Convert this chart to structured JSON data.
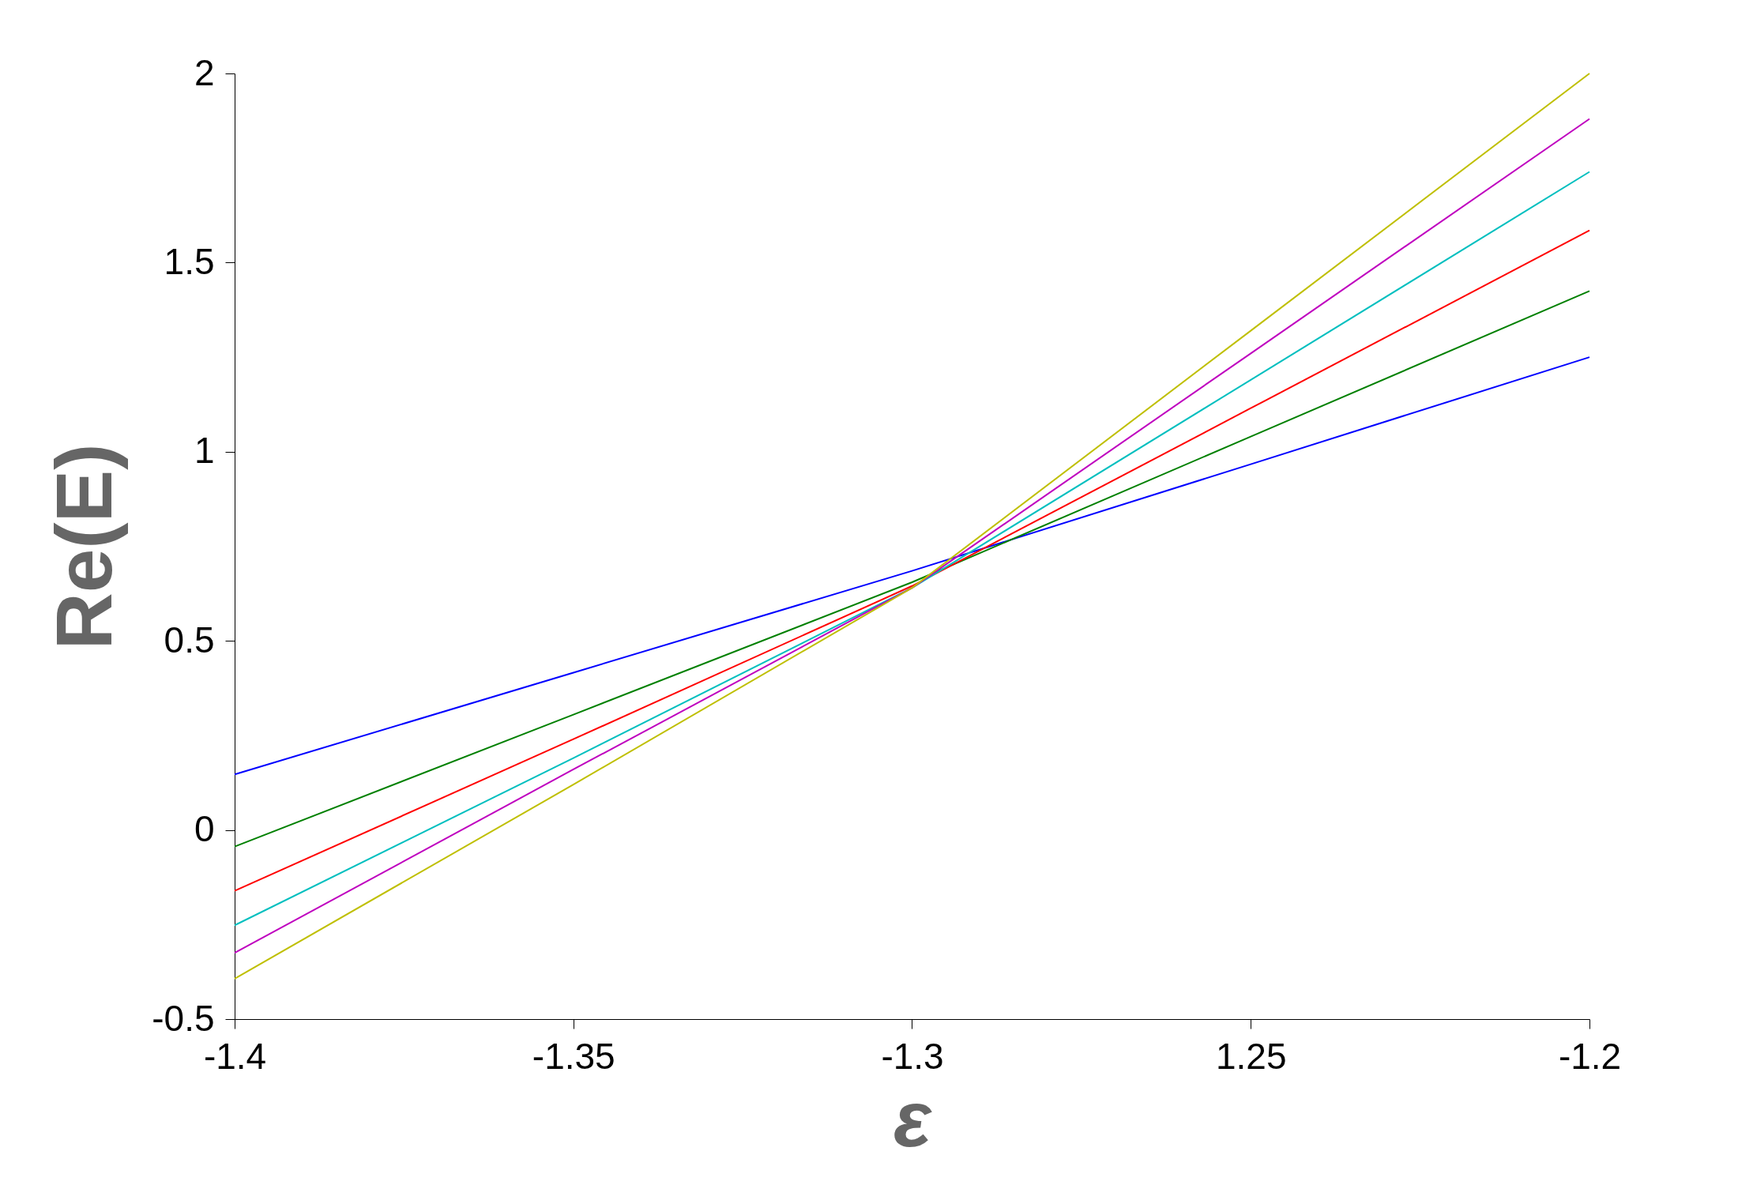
{
  "chart_data": {
    "type": "line",
    "xlabel": "ε",
    "ylabel": "Re(E)",
    "x": [
      -1.4,
      -1.35,
      -1.3,
      -1.25,
      -1.2
    ],
    "series": [
      {
        "color": "#0000ff",
        "values": [
          0.147,
          0.416,
          0.685,
          0.967,
          1.25
        ]
      },
      {
        "color": "#008000",
        "values": [
          -0.044,
          0.305,
          0.655,
          1.04,
          1.425
        ]
      },
      {
        "color": "#ff0000",
        "values": [
          -0.161,
          0.24,
          0.645,
          1.115,
          1.585
        ]
      },
      {
        "color": "#00bfbf",
        "values": [
          -0.252,
          0.19,
          0.64,
          1.19,
          1.74
        ]
      },
      {
        "color": "#bf00bf",
        "values": [
          -0.325,
          0.16,
          0.64,
          1.26,
          1.88
        ]
      },
      {
        "color": "#bfbf00",
        "values": [
          -0.393,
          0.12,
          0.64,
          1.32,
          2.0
        ]
      }
    ],
    "xlim": [
      -1.4,
      -1.2
    ],
    "xticks": [
      -1.4,
      -1.35,
      -1.3,
      {
        "value": -1.25,
        "label": "1.25"
      },
      -1.2
    ],
    "ylim": [
      -0.5,
      2
    ],
    "yticks": [
      -0.5,
      0,
      0.5,
      1,
      1.5,
      2
    ],
    "grid": false,
    "legend": false,
    "marker": "none",
    "line_style": "solid"
  }
}
